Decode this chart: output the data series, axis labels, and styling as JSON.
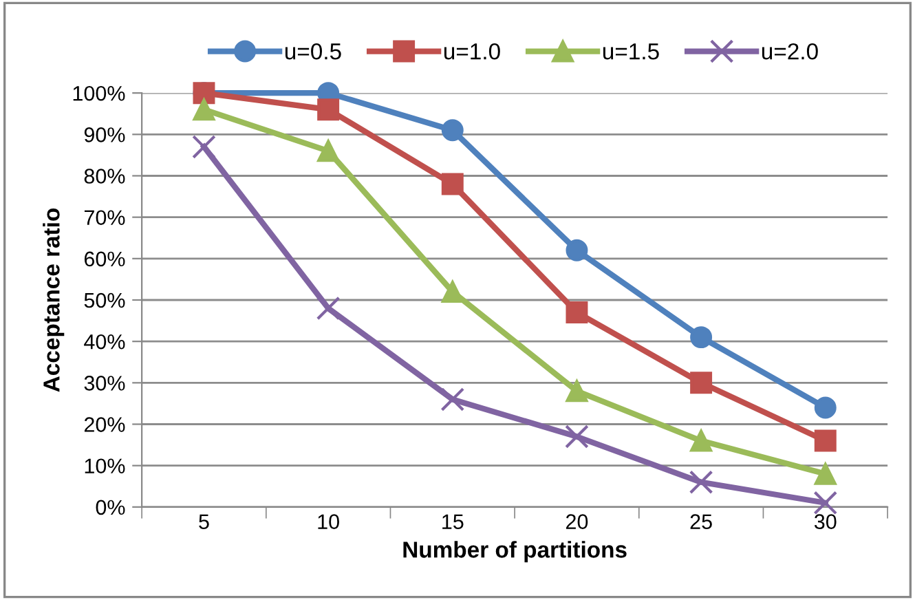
{
  "chart_data": {
    "type": "line",
    "xlabel": "Number of partitions",
    "ylabel": "Acceptance ratio",
    "categories": [
      "5",
      "10",
      "15",
      "20",
      "25",
      "30"
    ],
    "series": [
      {
        "name": "u=0.5",
        "color": "#4f81bd",
        "marker": "circle",
        "values": [
          100,
          100,
          91,
          62,
          41,
          24
        ]
      },
      {
        "name": "u=1.0",
        "color": "#c0504d",
        "marker": "square",
        "values": [
          100,
          96,
          78,
          47,
          30,
          16
        ]
      },
      {
        "name": "u=1.5",
        "color": "#9bbb59",
        "marker": "triangle",
        "values": [
          96,
          86,
          52,
          28,
          16,
          8
        ]
      },
      {
        "name": "u=2.0",
        "color": "#8064a2",
        "marker": "cross",
        "values": [
          87,
          48,
          26,
          17,
          6,
          1
        ]
      }
    ],
    "ylim": [
      0,
      100
    ],
    "yticks": [
      {
        "value": 0,
        "label": "0%"
      },
      {
        "value": 10,
        "label": "10%"
      },
      {
        "value": 20,
        "label": "20%"
      },
      {
        "value": 30,
        "label": "30%"
      },
      {
        "value": 40,
        "label": "40%"
      },
      {
        "value": 50,
        "label": "50%"
      },
      {
        "value": 60,
        "label": "60%"
      },
      {
        "value": 70,
        "label": "70%"
      },
      {
        "value": 80,
        "label": "80%"
      },
      {
        "value": 90,
        "label": "90%"
      },
      {
        "value": 100,
        "label": "100%"
      }
    ],
    "grid": "y",
    "legend": "top"
  }
}
